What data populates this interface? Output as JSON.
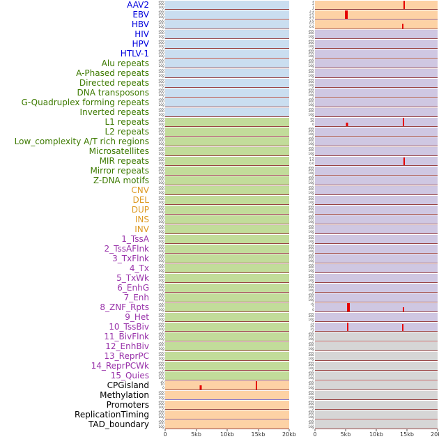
{
  "chart_data": {
    "type": "area",
    "title": "",
    "x_axis": {
      "ticks": [
        "0",
        "5kb",
        "10kb",
        "15kb",
        "20kb"
      ],
      "fractions": [
        0,
        0.25,
        0.5,
        0.75,
        1
      ],
      "range_bp": [
        0,
        20000
      ]
    },
    "yticks_default": [
      "500",
      "300",
      "100",
      "0"
    ],
    "panel_colors": {
      "blue": "#cadef0",
      "green": "#c2dc9a",
      "orange": "#fdd2a5",
      "purple": "#cfc7e2",
      "gray": "#d6d6d6"
    },
    "label_colors": {
      "blue": "#0000dd",
      "green": "#3d7a00",
      "orange": "#dd9922",
      "purple": "#9933aa",
      "black": "#000000"
    },
    "spike_color": "#e60000",
    "baseline_color": "#994444",
    "rows": [
      {
        "label": "AAV2",
        "lc": "blue",
        "l": {
          "bg": "blue"
        },
        "r": {
          "bg": "orange",
          "yt": [
            "3",
            "2",
            "1",
            "0"
          ],
          "spikes": [
            {
              "x": 0.727,
              "h": 1,
              "w": 2
            }
          ]
        }
      },
      {
        "label": "EBV",
        "lc": "blue",
        "l": {
          "bg": "blue"
        },
        "r": {
          "bg": "orange",
          "yt": [
            "7.5",
            "5.0",
            "2.5",
            "0.0"
          ],
          "spikes": [
            {
              "x": 0.255,
              "h": 1,
              "w": 4
            }
          ]
        }
      },
      {
        "label": "HBV",
        "lc": "blue",
        "l": {
          "bg": "blue"
        },
        "r": {
          "bg": "orange",
          "yt": [
            "1.0",
            "0.5",
            "0.0"
          ],
          "spikes": [
            {
              "x": 0.716,
              "h": 0.55,
              "w": 2
            }
          ]
        }
      },
      {
        "label": "HIV",
        "lc": "blue",
        "l": {
          "bg": "blue"
        },
        "r": {
          "bg": "purple"
        }
      },
      {
        "label": "HPV",
        "lc": "blue",
        "l": {
          "bg": "blue"
        },
        "r": {
          "bg": "purple"
        }
      },
      {
        "label": "HTLV-1",
        "lc": "blue",
        "l": {
          "bg": "blue"
        },
        "r": {
          "bg": "purple"
        }
      },
      {
        "label": "Alu repeats",
        "lc": "green",
        "l": {
          "bg": "blue"
        },
        "r": {
          "bg": "purple"
        }
      },
      {
        "label": "A-Phased repeats",
        "lc": "green",
        "l": {
          "bg": "blue"
        },
        "r": {
          "bg": "purple"
        }
      },
      {
        "label": "Directed repeats",
        "lc": "green",
        "l": {
          "bg": "blue"
        },
        "r": {
          "bg": "purple"
        }
      },
      {
        "label": "DNA transposons",
        "lc": "green",
        "l": {
          "bg": "blue"
        },
        "r": {
          "bg": "purple"
        }
      },
      {
        "label": "G-Quadruplex forming repeats",
        "lc": "green",
        "l": {
          "bg": "blue"
        },
        "r": {
          "bg": "purple"
        }
      },
      {
        "label": "Inverted repeats",
        "lc": "green",
        "l": {
          "bg": "blue"
        },
        "r": {
          "bg": "purple"
        }
      },
      {
        "label": "L1 repeats",
        "lc": "green",
        "l": {
          "bg": "green"
        },
        "r": {
          "bg": "purple",
          "yt": [
            "40",
            "20",
            "0"
          ],
          "spikes": [
            {
              "x": 0.26,
              "h": 0.4,
              "w": 3
            },
            {
              "x": 0.722,
              "h": 1,
              "w": 2
            }
          ]
        }
      },
      {
        "label": "L2 repeats",
        "lc": "green",
        "l": {
          "bg": "green"
        },
        "r": {
          "bg": "purple"
        }
      },
      {
        "label": "Low_complexity A/T rich regions",
        "lc": "green",
        "l": {
          "bg": "green"
        },
        "r": {
          "bg": "purple"
        }
      },
      {
        "label": "Microsatellites",
        "lc": "green",
        "l": {
          "bg": "green"
        },
        "r": {
          "bg": "purple"
        }
      },
      {
        "label": "MIR repeats",
        "lc": "green",
        "l": {
          "bg": "green"
        },
        "r": {
          "bg": "purple",
          "yt": [
            "2.0",
            "1.0",
            "0.0"
          ],
          "spikes": [
            {
              "x": 0.727,
              "h": 0.95,
              "w": 2
            }
          ]
        }
      },
      {
        "label": "Mirror repeats",
        "lc": "green",
        "l": {
          "bg": "green"
        },
        "r": {
          "bg": "purple"
        }
      },
      {
        "label": "Z-DNA motifs",
        "lc": "green",
        "l": {
          "bg": "green"
        },
        "r": {
          "bg": "purple"
        }
      },
      {
        "label": "CNV",
        "lc": "orange",
        "l": {
          "bg": "green"
        },
        "r": {
          "bg": "purple"
        }
      },
      {
        "label": "DEL",
        "lc": "orange",
        "l": {
          "bg": "green"
        },
        "r": {
          "bg": "purple"
        }
      },
      {
        "label": "DUP",
        "lc": "orange",
        "l": {
          "bg": "green"
        },
        "r": {
          "bg": "purple"
        }
      },
      {
        "label": "INS",
        "lc": "orange",
        "l": {
          "bg": "green"
        },
        "r": {
          "bg": "purple"
        }
      },
      {
        "label": "INV",
        "lc": "orange",
        "l": {
          "bg": "green"
        },
        "r": {
          "bg": "purple"
        }
      },
      {
        "label": "1_TssA",
        "lc": "purple",
        "l": {
          "bg": "green"
        },
        "r": {
          "bg": "purple"
        }
      },
      {
        "label": "2_TssAFlnk",
        "lc": "purple",
        "l": {
          "bg": "green"
        },
        "r": {
          "bg": "purple"
        }
      },
      {
        "label": "3_TxFlnk",
        "lc": "purple",
        "l": {
          "bg": "green"
        },
        "r": {
          "bg": "purple"
        }
      },
      {
        "label": "4_Tx",
        "lc": "purple",
        "l": {
          "bg": "green"
        },
        "r": {
          "bg": "purple"
        }
      },
      {
        "label": "5_TxWk",
        "lc": "purple",
        "l": {
          "bg": "green"
        },
        "r": {
          "bg": "purple"
        }
      },
      {
        "label": "6_EnhG",
        "lc": "purple",
        "l": {
          "bg": "green"
        },
        "r": {
          "bg": "purple"
        }
      },
      {
        "label": "7_Enh",
        "lc": "purple",
        "l": {
          "bg": "green"
        },
        "r": {
          "bg": "purple"
        }
      },
      {
        "label": "8_ZNF_Rpts",
        "lc": "purple",
        "l": {
          "bg": "green"
        },
        "r": {
          "bg": "purple",
          "yt": [
            "10",
            "5",
            "0"
          ],
          "spikes": [
            {
              "x": 0.27,
              "h": 1,
              "w": 4
            },
            {
              "x": 0.72,
              "h": 0.5,
              "w": 2
            }
          ]
        }
      },
      {
        "label": "9_Het",
        "lc": "purple",
        "l": {
          "bg": "green"
        },
        "r": {
          "bg": "purple"
        }
      },
      {
        "label": "10_TssBiv",
        "lc": "purple",
        "l": {
          "bg": "green"
        },
        "r": {
          "bg": "purple",
          "yt": [
            "75",
            "50",
            "25",
            "0"
          ],
          "spikes": [
            {
              "x": 0.267,
              "h": 1,
              "w": 2
            },
            {
              "x": 0.716,
              "h": 0.8,
              "w": 2
            }
          ]
        }
      },
      {
        "label": "11_BivFlnk",
        "lc": "purple",
        "l": {
          "bg": "green"
        },
        "r": {
          "bg": "gray"
        }
      },
      {
        "label": "12_EnhBiv",
        "lc": "purple",
        "l": {
          "bg": "green"
        },
        "r": {
          "bg": "gray"
        }
      },
      {
        "label": "13_ReprPC",
        "lc": "purple",
        "l": {
          "bg": "green"
        },
        "r": {
          "bg": "gray"
        }
      },
      {
        "label": "14_ReprPCWk",
        "lc": "purple",
        "l": {
          "bg": "green"
        },
        "r": {
          "bg": "gray"
        }
      },
      {
        "label": "15_Quies",
        "lc": "purple",
        "l": {
          "bg": "green"
        },
        "r": {
          "bg": "gray"
        }
      },
      {
        "label": "CPGisland",
        "lc": "black",
        "l": {
          "bg": "orange",
          "yt": [
            "20",
            "10",
            "0"
          ],
          "spikes": [
            {
              "x": 0.287,
              "h": 0.5,
              "w": 3
            },
            {
              "x": 0.736,
              "h": 1,
              "w": 2
            }
          ]
        },
        "r": {
          "bg": "gray"
        }
      },
      {
        "label": "Methylation",
        "lc": "black",
        "l": {
          "bg": "orange",
          "baseline": "#8877cc"
        },
        "r": {
          "bg": "gray"
        }
      },
      {
        "label": "Promoters",
        "lc": "black",
        "l": {
          "bg": "orange"
        },
        "r": {
          "bg": "gray"
        }
      },
      {
        "label": "ReplicationTiming",
        "lc": "black",
        "l": {
          "bg": "orange"
        },
        "r": {
          "bg": "gray"
        }
      },
      {
        "label": "TAD_boundary",
        "lc": "black",
        "l": {
          "bg": "orange"
        },
        "r": {
          "bg": "gray"
        }
      }
    ]
  }
}
